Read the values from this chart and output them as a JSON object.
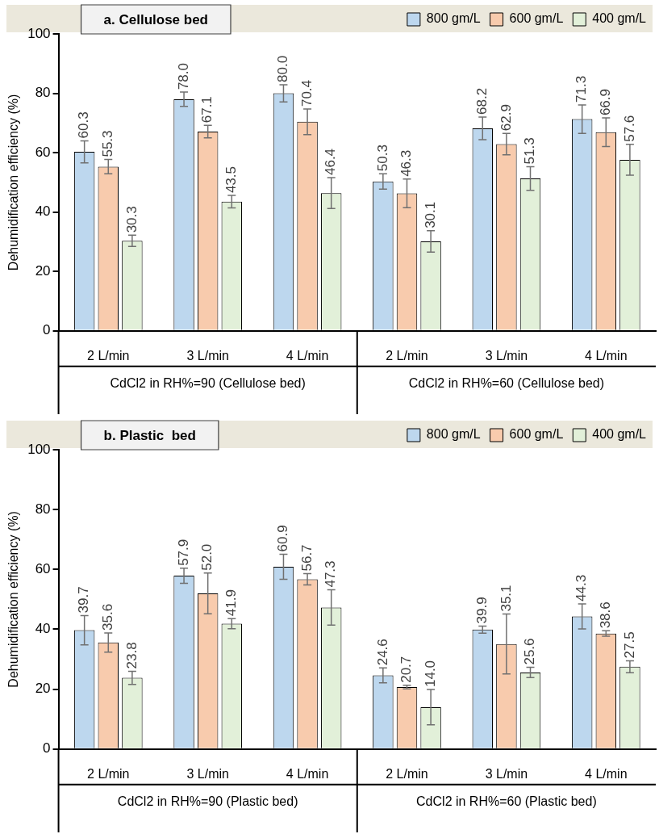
{
  "chart_data": [
    {
      "type": "bar",
      "title": "a. Cellulose bed",
      "ylabel": "Dehumidification efficiency (%)",
      "yticks": [
        0,
        20,
        40,
        60,
        80,
        100
      ],
      "categories": [
        "2 L/min",
        "3 L/min",
        "4 L/min",
        "2 L/min",
        "3 L/min",
        "4 L/min"
      ],
      "series": [
        {
          "name": "800 gm/L",
          "color": "#bdd7ee",
          "values": [
            60.3,
            78.0,
            80.0,
            50.3,
            68.2,
            71.3
          ],
          "value_labels": [
            "60.3",
            "78.0",
            "80.0",
            "50.3",
            "68.2",
            "71.3"
          ],
          "errors": [
            3.7,
            2.4,
            2.9,
            2.6,
            3.8,
            4.8
          ]
        },
        {
          "name": "600 gm/L",
          "color": "#f8cbad",
          "values": [
            55.3,
            67.1,
            70.4,
            46.3,
            62.9,
            66.9
          ],
          "value_labels": [
            "55.3",
            "67.1",
            "70.4",
            "46.3",
            "62.9",
            "66.9"
          ],
          "errors": [
            2.4,
            2.1,
            4.3,
            4.8,
            3.6,
            4.8
          ]
        },
        {
          "name": "400 gm/L",
          "color": "#e2f0d9",
          "values": [
            30.3,
            43.5,
            46.4,
            30.1,
            51.3,
            57.6
          ],
          "value_labels": [
            "30.3",
            "43.5",
            "46.4",
            "30.1",
            "51.3",
            "57.6"
          ],
          "errors": [
            1.9,
            2.1,
            5.2,
            3.6,
            4.0,
            5.2
          ]
        }
      ],
      "ylim": [
        0,
        100
      ],
      "annotations": [
        "CdCl2 in RH%=90 (Cellulose bed)",
        "CdCl2 in RH%=60 (Cellulose bed)"
      ],
      "grid": false,
      "legend": "top right"
    },
    {
      "type": "bar",
      "title": "b. Plastic  bed",
      "ylabel": "Dehumidification efficiency (%)",
      "yticks": [
        0,
        20,
        40,
        60,
        80,
        100
      ],
      "categories": [
        "2 L/min",
        "3 L/min",
        "4 L/min",
        "2 L/min",
        "3 L/min",
        "4 L/min"
      ],
      "series": [
        {
          "name": "800 gm/L",
          "color": "#bdd7ee",
          "values": [
            39.7,
            57.9,
            60.9,
            24.6,
            39.9,
            44.3
          ],
          "value_labels": [
            "39.7",
            "57.9",
            "60.9",
            "24.6",
            "39.9",
            "44.3"
          ],
          "errors": [
            4.9,
            2.5,
            4.2,
            2.5,
            1.2,
            4.2
          ]
        },
        {
          "name": "600 gm/L",
          "color": "#f8cbad",
          "values": [
            35.6,
            52.0,
            56.7,
            20.7,
            35.1,
            38.6
          ],
          "value_labels": [
            "35.6",
            "52.0",
            "56.7",
            "20.7",
            "35.1",
            "38.6"
          ],
          "errors": [
            3.2,
            6.8,
            1.9,
            0.6,
            10,
            0.9
          ]
        },
        {
          "name": "400 gm/L",
          "color": "#e2f0d9",
          "values": [
            23.8,
            41.9,
            47.3,
            14.0,
            25.6,
            27.5
          ],
          "value_labels": [
            "23.8",
            "41.9",
            "47.3",
            "14.0",
            "25.6",
            "27.5"
          ],
          "errors": [
            2.2,
            1.7,
            5.9,
            5.9,
            1.7,
            2.0
          ]
        }
      ],
      "ylim": [
        0,
        100
      ],
      "annotations": [
        "CdCl2 in RH%=90 (Plastic bed)",
        "CdCl2 in RH%=60 (Plastic bed)"
      ],
      "grid": false,
      "legend": "top right"
    }
  ]
}
